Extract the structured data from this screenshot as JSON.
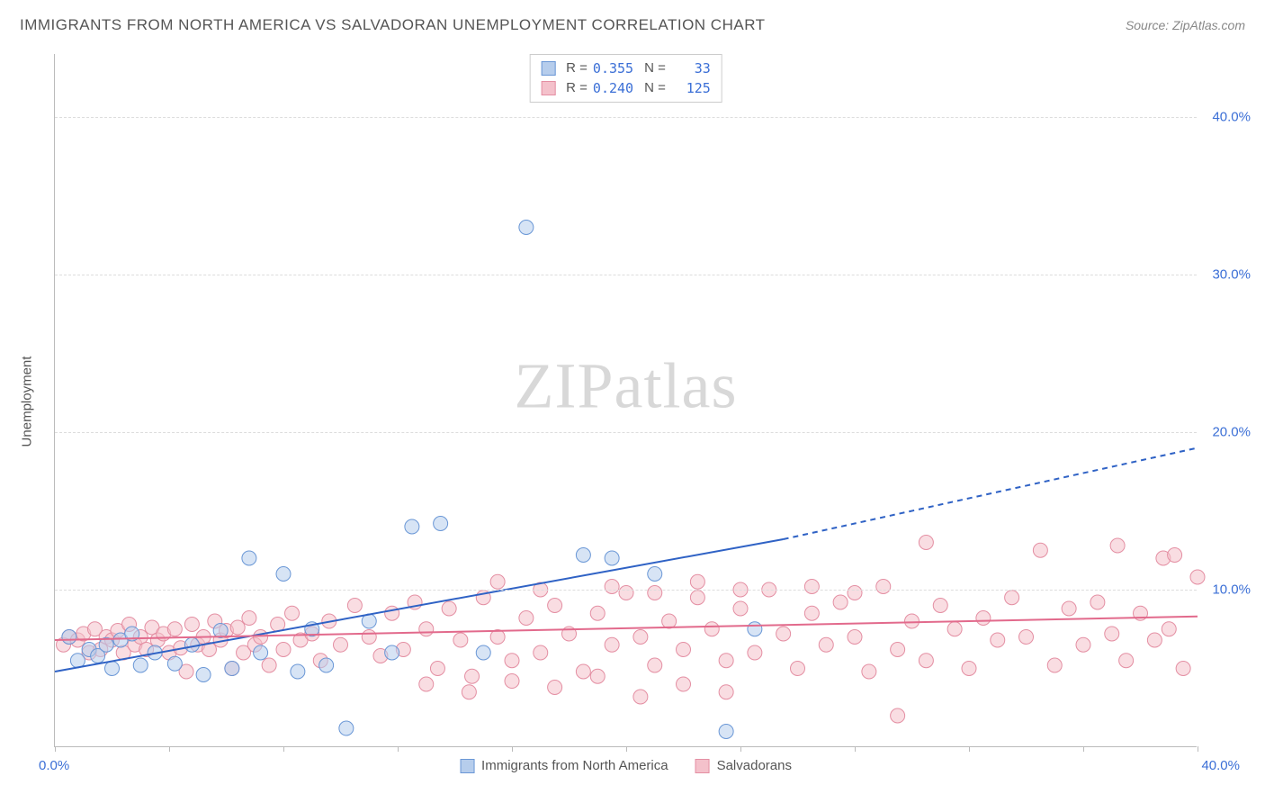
{
  "title": "IMMIGRANTS FROM NORTH AMERICA VS SALVADORAN UNEMPLOYMENT CORRELATION CHART",
  "source": "Source: ZipAtlas.com",
  "watermark": {
    "part1": "ZIP",
    "part2": "atlas"
  },
  "y_axis_title": "Unemployment",
  "chart": {
    "type": "scatter",
    "xlim": [
      0,
      40
    ],
    "ylim": [
      0,
      44
    ],
    "x_ticks_pct": [
      0,
      4,
      8,
      12,
      16,
      20,
      24,
      28,
      32,
      36,
      40
    ],
    "y_grid": [
      10,
      20,
      30,
      40
    ],
    "y_tick_labels": [
      "10.0%",
      "20.0%",
      "30.0%",
      "40.0%"
    ],
    "x_label_min": "0.0%",
    "x_label_max": "40.0%",
    "background_color": "#ffffff",
    "grid_color": "#dddddd",
    "axis_color": "#bbbbbb",
    "tick_label_color": "#3b6fd6",
    "marker_radius": 8,
    "marker_opacity": 0.55,
    "series": [
      {
        "name": "Immigrants from North America",
        "fill": "#b6cdec",
        "stroke": "#6a97d6",
        "r": 0.355,
        "n": 33,
        "trend": {
          "color": "#2f62c5",
          "width": 2,
          "x0": 0,
          "y0": 4.8,
          "x_solid_end": 25.5,
          "y_solid_end": 13.2,
          "x1": 40,
          "y1": 19.0,
          "dash_after_solid": true
        },
        "points": [
          [
            0.5,
            7.0
          ],
          [
            0.8,
            5.5
          ],
          [
            1.2,
            6.2
          ],
          [
            1.5,
            5.8
          ],
          [
            1.8,
            6.5
          ],
          [
            2.0,
            5.0
          ],
          [
            2.3,
            6.8
          ],
          [
            2.7,
            7.2
          ],
          [
            3.0,
            5.2
          ],
          [
            3.5,
            6.0
          ],
          [
            4.2,
            5.3
          ],
          [
            4.8,
            6.5
          ],
          [
            5.2,
            4.6
          ],
          [
            5.8,
            7.4
          ],
          [
            6.2,
            5.0
          ],
          [
            6.8,
            12.0
          ],
          [
            7.2,
            6.0
          ],
          [
            8.0,
            11.0
          ],
          [
            8.5,
            4.8
          ],
          [
            9.0,
            7.5
          ],
          [
            9.5,
            5.2
          ],
          [
            10.2,
            1.2
          ],
          [
            11.0,
            8.0
          ],
          [
            11.8,
            6.0
          ],
          [
            12.5,
            14.0
          ],
          [
            13.5,
            14.2
          ],
          [
            15.0,
            6.0
          ],
          [
            16.5,
            33.0
          ],
          [
            18.5,
            12.2
          ],
          [
            19.5,
            12.0
          ],
          [
            21.0,
            11.0
          ],
          [
            23.5,
            1.0
          ],
          [
            24.5,
            7.5
          ]
        ]
      },
      {
        "name": "Salvadorans",
        "fill": "#f4c1cb",
        "stroke": "#e48fa3",
        "r": 0.24,
        "n": 125,
        "trend": {
          "color": "#e26a8c",
          "width": 2,
          "x0": 0,
          "y0": 6.8,
          "x_solid_end": 40,
          "y_solid_end": 8.3,
          "x1": 40,
          "y1": 8.3,
          "dash_after_solid": false
        },
        "points": [
          [
            0.3,
            6.5
          ],
          [
            0.5,
            7.0
          ],
          [
            0.8,
            6.8
          ],
          [
            1.0,
            7.2
          ],
          [
            1.2,
            6.0
          ],
          [
            1.4,
            7.5
          ],
          [
            1.6,
            6.2
          ],
          [
            1.8,
            7.0
          ],
          [
            2.0,
            6.8
          ],
          [
            2.2,
            7.4
          ],
          [
            2.4,
            6.0
          ],
          [
            2.6,
            7.8
          ],
          [
            2.8,
            6.5
          ],
          [
            3.0,
            7.0
          ],
          [
            3.2,
            6.2
          ],
          [
            3.4,
            7.6
          ],
          [
            3.6,
            6.8
          ],
          [
            3.8,
            7.2
          ],
          [
            4.0,
            6.0
          ],
          [
            4.2,
            7.5
          ],
          [
            4.4,
            6.3
          ],
          [
            4.6,
            4.8
          ],
          [
            4.8,
            7.8
          ],
          [
            5.0,
            6.5
          ],
          [
            5.2,
            7.0
          ],
          [
            5.4,
            6.2
          ],
          [
            5.6,
            8.0
          ],
          [
            5.8,
            6.8
          ],
          [
            6.0,
            7.4
          ],
          [
            6.2,
            5.0
          ],
          [
            6.4,
            7.6
          ],
          [
            6.6,
            6.0
          ],
          [
            6.8,
            8.2
          ],
          [
            7.0,
            6.5
          ],
          [
            7.2,
            7.0
          ],
          [
            7.5,
            5.2
          ],
          [
            7.8,
            7.8
          ],
          [
            8.0,
            6.2
          ],
          [
            8.3,
            8.5
          ],
          [
            8.6,
            6.8
          ],
          [
            9.0,
            7.2
          ],
          [
            9.3,
            5.5
          ],
          [
            9.6,
            8.0
          ],
          [
            10.0,
            6.5
          ],
          [
            10.5,
            9.0
          ],
          [
            11.0,
            7.0
          ],
          [
            11.4,
            5.8
          ],
          [
            11.8,
            8.5
          ],
          [
            12.2,
            6.2
          ],
          [
            12.6,
            9.2
          ],
          [
            13.0,
            7.5
          ],
          [
            13.4,
            5.0
          ],
          [
            13.8,
            8.8
          ],
          [
            14.2,
            6.8
          ],
          [
            14.6,
            4.5
          ],
          [
            15.0,
            9.5
          ],
          [
            15.5,
            7.0
          ],
          [
            16.0,
            5.5
          ],
          [
            16.5,
            8.2
          ],
          [
            17.0,
            6.0
          ],
          [
            17.5,
            9.0
          ],
          [
            18.0,
            7.2
          ],
          [
            18.5,
            4.8
          ],
          [
            19.0,
            8.5
          ],
          [
            19.5,
            6.5
          ],
          [
            20.0,
            9.8
          ],
          [
            20.5,
            7.0
          ],
          [
            21.0,
            5.2
          ],
          [
            21.5,
            8.0
          ],
          [
            22.0,
            6.2
          ],
          [
            22.5,
            9.5
          ],
          [
            23.0,
            7.5
          ],
          [
            23.5,
            5.5
          ],
          [
            24.0,
            8.8
          ],
          [
            24.5,
            6.0
          ],
          [
            25.0,
            10.0
          ],
          [
            25.5,
            7.2
          ],
          [
            26.0,
            5.0
          ],
          [
            26.5,
            8.5
          ],
          [
            27.0,
            6.5
          ],
          [
            27.5,
            9.2
          ],
          [
            28.0,
            7.0
          ],
          [
            28.5,
            4.8
          ],
          [
            29.0,
            10.2
          ],
          [
            29.5,
            6.2
          ],
          [
            30.0,
            8.0
          ],
          [
            30.5,
            5.5
          ],
          [
            31.0,
            9.0
          ],
          [
            31.5,
            7.5
          ],
          [
            32.0,
            5.0
          ],
          [
            32.5,
            8.2
          ],
          [
            33.0,
            6.8
          ],
          [
            33.5,
            9.5
          ],
          [
            34.0,
            7.0
          ],
          [
            34.5,
            12.5
          ],
          [
            35.0,
            5.2
          ],
          [
            35.5,
            8.8
          ],
          [
            36.0,
            6.5
          ],
          [
            36.5,
            9.2
          ],
          [
            37.0,
            7.2
          ],
          [
            37.2,
            12.8
          ],
          [
            37.5,
            5.5
          ],
          [
            38.0,
            8.5
          ],
          [
            38.5,
            6.8
          ],
          [
            38.8,
            12.0
          ],
          [
            39.0,
            7.5
          ],
          [
            39.2,
            12.2
          ],
          [
            39.5,
            5.0
          ],
          [
            40.0,
            10.8
          ],
          [
            13.0,
            4.0
          ],
          [
            14.5,
            3.5
          ],
          [
            16.0,
            4.2
          ],
          [
            17.5,
            3.8
          ],
          [
            19.0,
            4.5
          ],
          [
            20.5,
            3.2
          ],
          [
            22.0,
            4.0
          ],
          [
            23.5,
            3.5
          ],
          [
            29.5,
            2.0
          ],
          [
            15.5,
            10.5
          ],
          [
            17.0,
            10.0
          ],
          [
            19.5,
            10.2
          ],
          [
            21.0,
            9.8
          ],
          [
            22.5,
            10.5
          ],
          [
            24.0,
            10.0
          ],
          [
            26.5,
            10.2
          ],
          [
            28.0,
            9.8
          ],
          [
            30.5,
            13.0
          ]
        ]
      }
    ]
  },
  "legend_top_labels": {
    "R": "R =",
    "N": "N ="
  },
  "legend_bottom": [
    {
      "label": "Immigrants from North America",
      "fill": "#b6cdec",
      "stroke": "#6a97d6"
    },
    {
      "label": "Salvadorans",
      "fill": "#f4c1cb",
      "stroke": "#e48fa3"
    }
  ]
}
